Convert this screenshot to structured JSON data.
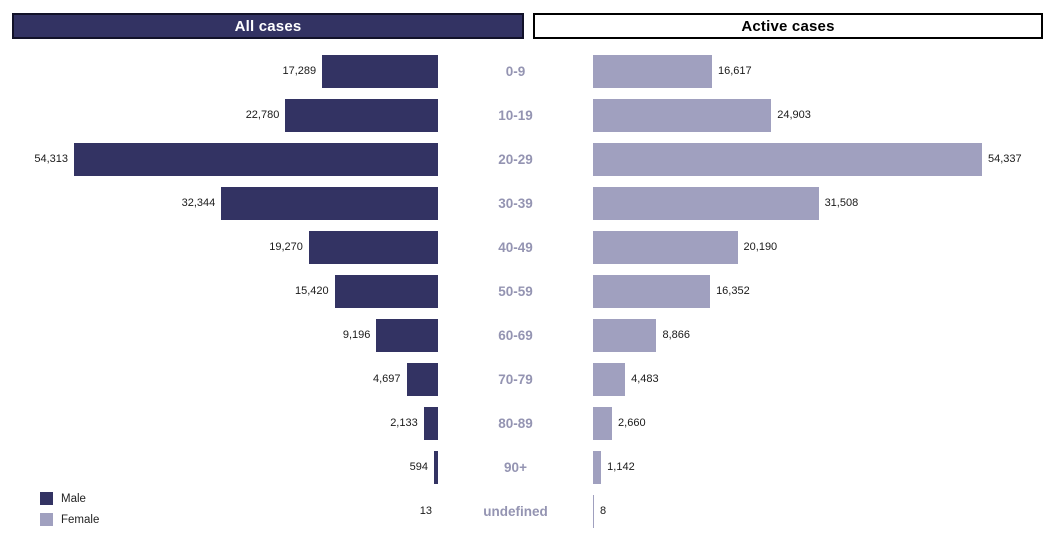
{
  "title_bar": {
    "left": "All cases",
    "right": "Active cases"
  },
  "colors": {
    "male": "#333363",
    "female": "#a0a0bf",
    "age_label": "#9494b2",
    "header_left_bg": "#333363",
    "header_left_border": "#121229",
    "header_right_border": "#000000"
  },
  "legend": {
    "position": "bottom-left",
    "items": [
      {
        "label": "Male",
        "color": "#333363"
      },
      {
        "label": "Female",
        "color": "#a0a0bf"
      }
    ]
  },
  "chart_data": {
    "type": "bar",
    "orientation": "horizontal",
    "layout": "bidirectional-pyramid",
    "grid": false,
    "value_axis_max": 54337,
    "categories": [
      "0-9",
      "10-19",
      "20-29",
      "30-39",
      "40-49",
      "50-59",
      "60-69",
      "70-79",
      "80-89",
      "90+",
      "undefined"
    ],
    "series": [
      {
        "name": "All cases",
        "legend": "Male",
        "side": "left",
        "color": "#333363",
        "values": [
          17289,
          22780,
          54313,
          32344,
          19270,
          15420,
          9196,
          4697,
          2133,
          594,
          13
        ],
        "labels": [
          "17,289",
          "22,780",
          "54,313",
          "32,344",
          "19,270",
          "15,420",
          "9,196",
          "4,697",
          "2,133",
          "594",
          "13"
        ]
      },
      {
        "name": "Active cases",
        "legend": "Female",
        "side": "right",
        "color": "#a0a0bf",
        "values": [
          16617,
          24903,
          54337,
          31508,
          20190,
          16352,
          8866,
          4483,
          2660,
          1142,
          8
        ],
        "labels": [
          "16,617",
          "24,903",
          "54,337",
          "31,508",
          "20,190",
          "16,352",
          "8,866",
          "4,483",
          "2,660",
          "1,142",
          "8"
        ]
      }
    ]
  }
}
